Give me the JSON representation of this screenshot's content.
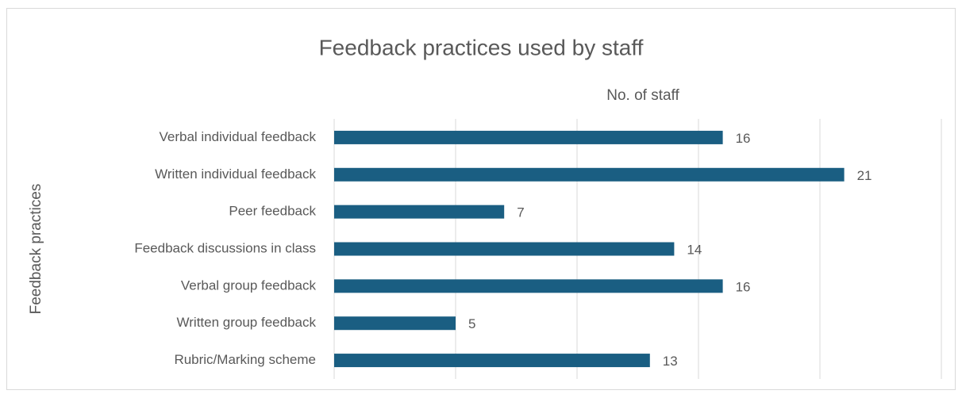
{
  "chart_data": {
    "type": "bar",
    "orientation": "horizontal",
    "title": "Feedback practices used by staff",
    "x_label": "No. of staff",
    "y_label": "Feedback practices",
    "categories": [
      "Verbal individual feedback",
      "Written individual feedback",
      "Peer feedback",
      "Feedback discussions in class",
      "Verbal group feedback",
      "Written group feedback",
      "Rubric/Marking scheme"
    ],
    "values": [
      16,
      21,
      7,
      14,
      16,
      5,
      13
    ],
    "color": "#1a5e82",
    "xlim": [
      0,
      25
    ],
    "xticks": [
      0,
      5,
      10,
      15,
      20,
      25
    ],
    "grid": true
  }
}
